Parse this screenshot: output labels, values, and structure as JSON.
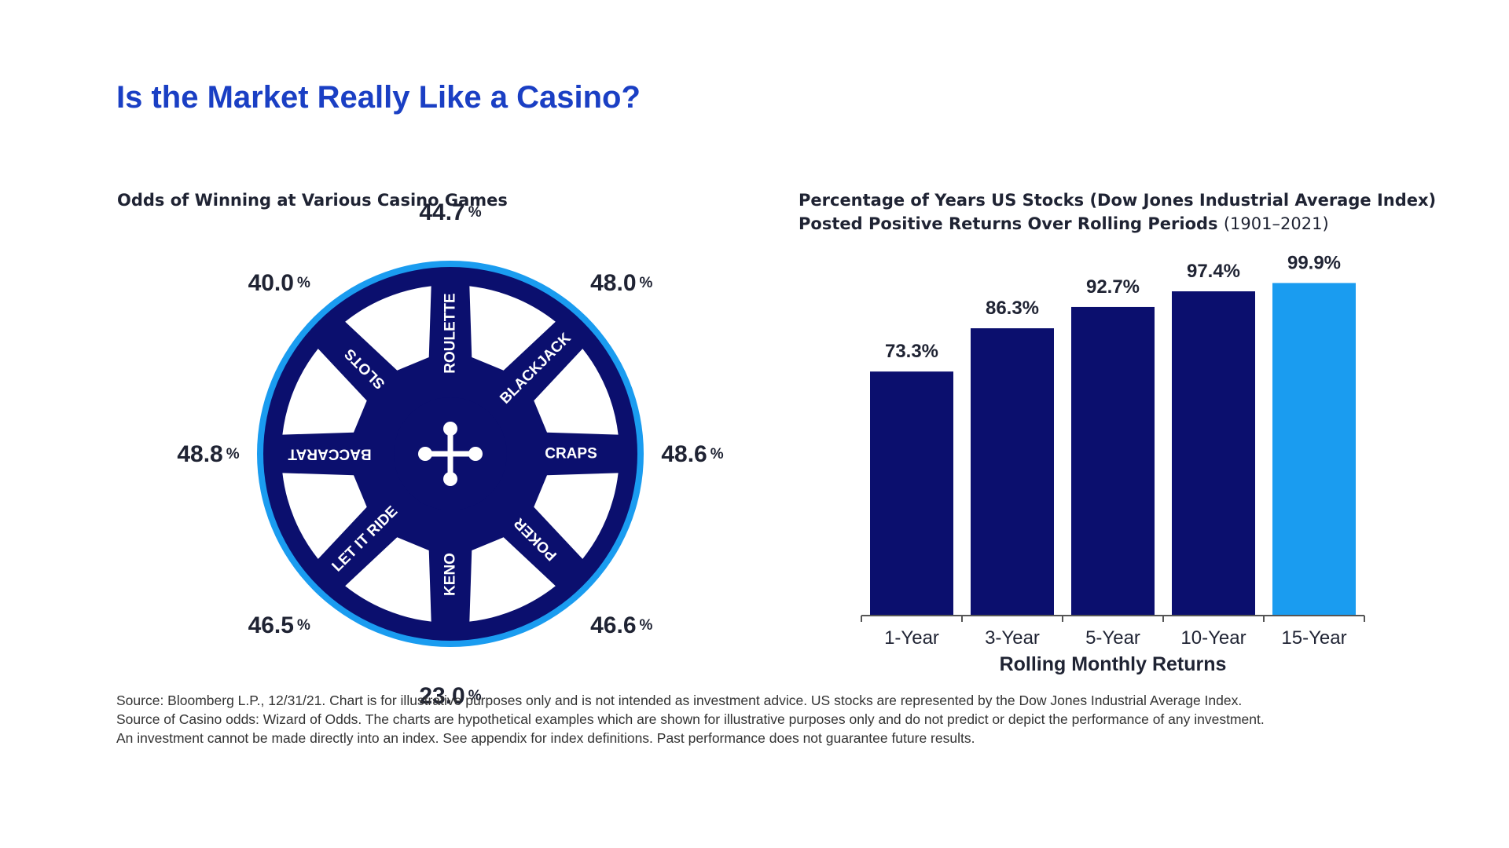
{
  "page": {
    "title": "Is the Market Really Like a Casino?",
    "source_lines": [
      "Source: Bloomberg L.P., 12/31/21. Chart is for illustrative purposes only and is not intended as investment advice. US stocks are represented by the Dow Jones Industrial Average Index.",
      "Source of Casino odds: Wizard of Odds. The charts are hypothetical examples which are shown for illustrative purposes only and do not predict or depict the performance of any investment.",
      "An investment cannot be made directly into an index. See appendix for index definitions. Past performance does not guarantee future results."
    ]
  },
  "colors": {
    "title": "#1a3fc4",
    "navy": "#0b0f6e",
    "highlight": "#1a9cf0",
    "wheel_rim": "#1a9cf0",
    "text": "#1f2333"
  },
  "chart_data": [
    {
      "type": "pie",
      "title": "Odds of Winning at Various Casino Games",
      "value_suffix": "%",
      "icon": "plus-cross-icon",
      "games": [
        {
          "label": "ROULETTE",
          "value": "44.7"
        },
        {
          "label": "BLACKJACK",
          "value": "48.0"
        },
        {
          "label": "CRAPS",
          "value": "48.6"
        },
        {
          "label": "POKER",
          "value": "46.6"
        },
        {
          "label": "KENO",
          "value": "23.0"
        },
        {
          "label": "LET IT RIDE",
          "value": "46.5"
        },
        {
          "label": "BACCARAT",
          "value": "48.8"
        },
        {
          "label": "SLOTS",
          "value": "40.0"
        }
      ]
    },
    {
      "type": "bar",
      "title": "Percentage of Years US Stocks (Dow Jones Industrial Average Index) Posted Positive Returns Over Rolling Periods",
      "title_suffix": "(1901–2021)",
      "xlabel": "Rolling Monthly Returns",
      "categories": [
        "1-Year",
        "3-Year",
        "5-Year",
        "10-Year",
        "15-Year"
      ],
      "values": [
        73.3,
        86.3,
        92.7,
        97.4,
        99.9
      ],
      "value_labels": [
        "73.3%",
        "86.3%",
        "92.7%",
        "97.4%",
        "99.9%"
      ],
      "ylim": [
        0,
        100
      ],
      "highlight_category": "15-Year"
    }
  ]
}
